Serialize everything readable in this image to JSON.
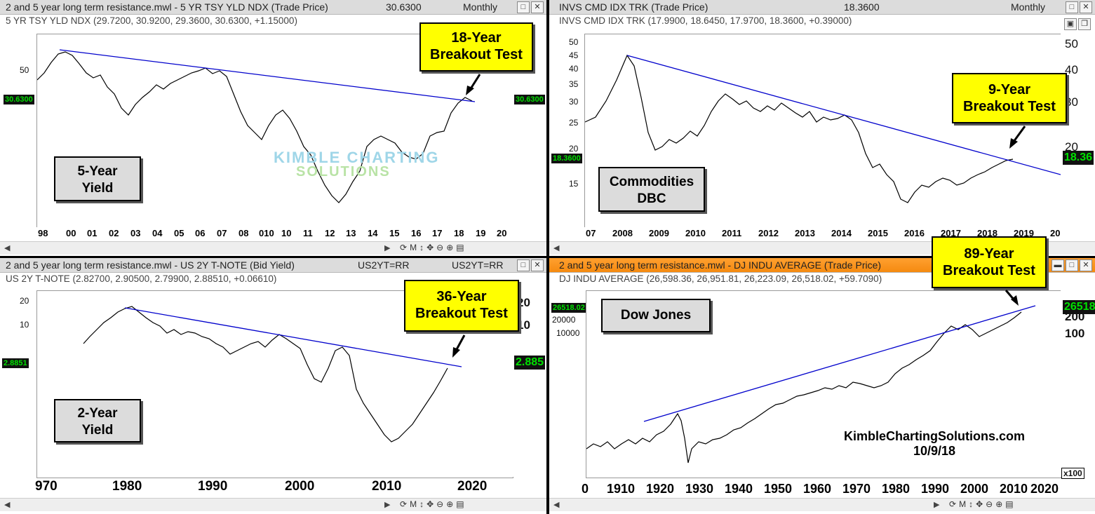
{
  "panels": {
    "p1": {
      "title": "2 and 5 year long term resistance.mwl - 5 YR TSY YLD NDX (Trade Price)",
      "last_value": "30.6300",
      "period": "Monthly",
      "ohlc": "5 YR TSY YLD NDX (29.7200, 30.9200, 29.3600, 30.6300, +1.15000)",
      "price_tag": "30.6300",
      "y_ticks": [
        "50"
      ],
      "x_ticks": [
        "98",
        "00",
        "01",
        "02",
        "03",
        "04",
        "05",
        "06",
        "07",
        "08",
        "010",
        "10",
        "11",
        "12",
        "13",
        "14",
        "15",
        "16",
        "17",
        "18",
        "19",
        "20"
      ],
      "callout": [
        "18-Year",
        "Breakout Test"
      ],
      "label": [
        "5-Year",
        "Yield"
      ],
      "watermark": [
        "KIMBLE CHARTING",
        "SOLUTIONS"
      ]
    },
    "p2": {
      "title": "INVS CMD IDX TRK (Trade Price)",
      "last_value": "18.3600",
      "period": "Monthly",
      "ohlc": "INVS CMD IDX TRK (17.9900, 18.6450, 17.9700, 18.3600, +0.39000)",
      "price_tag": "18.3600",
      "price_tag_right": "18.36",
      "y_ticks": [
        "50",
        "45",
        "40",
        "35",
        "30",
        "25",
        "20",
        "15"
      ],
      "y_ticks_right": [
        "50",
        "40",
        "30",
        "20"
      ],
      "x_ticks": [
        "07",
        "2008",
        "2009",
        "2010",
        "2011",
        "2012",
        "2013",
        "2014",
        "2015",
        "2016",
        "2017",
        "2018",
        "2019",
        "20"
      ],
      "callout": [
        "9-Year",
        "Breakout Test"
      ],
      "label": [
        "Commodities",
        "DBC"
      ]
    },
    "p3": {
      "title": "2 and 5 year long term resistance.mwl - US 2Y T-NOTE (Bid Yield)",
      "symbol_a": "US2YT=RR",
      "symbol_b": "US2YT=RR",
      "ohlc": "US 2Y T-NOTE (2.82700, 2.90500, 2.79900, 2.88510, +0.06610)",
      "price_tag": "2.8851",
      "price_tag_right": "2.885",
      "y_ticks": [
        "20",
        "10"
      ],
      "y_ticks_right": [
        "20",
        "10"
      ],
      "x_ticks": [
        "970",
        "1980",
        "1990",
        "2000",
        "2010",
        "2020"
      ],
      "callout": [
        "36-Year",
        "Breakout Test"
      ],
      "label": [
        "2-Year",
        "Yield"
      ]
    },
    "p4": {
      "title": "2 and 5 year long term resistance.mwl - DJ INDU AVERAGE (Trade Price)",
      "ohlc": "DJ INDU AVERAGE (26,598.36, 26,951.81, 26,223.09, 26,518.02, +59.7090)",
      "price_tag": "26518.02",
      "price_tag_right": "26518",
      "y_ticks": [
        "20000",
        "10000"
      ],
      "y_ticks_right": [
        "200",
        "100"
      ],
      "x_ticks": [
        "0",
        "1910",
        "1920",
        "1930",
        "1940",
        "1950",
        "1960",
        "1970",
        "1980",
        "1990",
        "2000",
        "2010",
        "2020"
      ],
      "callout": [
        "89-Year",
        "Breakout Test"
      ],
      "label": [
        "Dow Jones"
      ],
      "credit": [
        "KimbleChartingSolutions.com",
        "10/9/18"
      ],
      "multiplier": "x100"
    }
  },
  "toolbar": {
    "m_label": "M"
  },
  "colors": {
    "trendline": "#0000cc",
    "callout_bg": "#ffff00",
    "label_bg": "#dcdcdc",
    "price_tag": "#00e000",
    "active_title": "#f58a10"
  }
}
